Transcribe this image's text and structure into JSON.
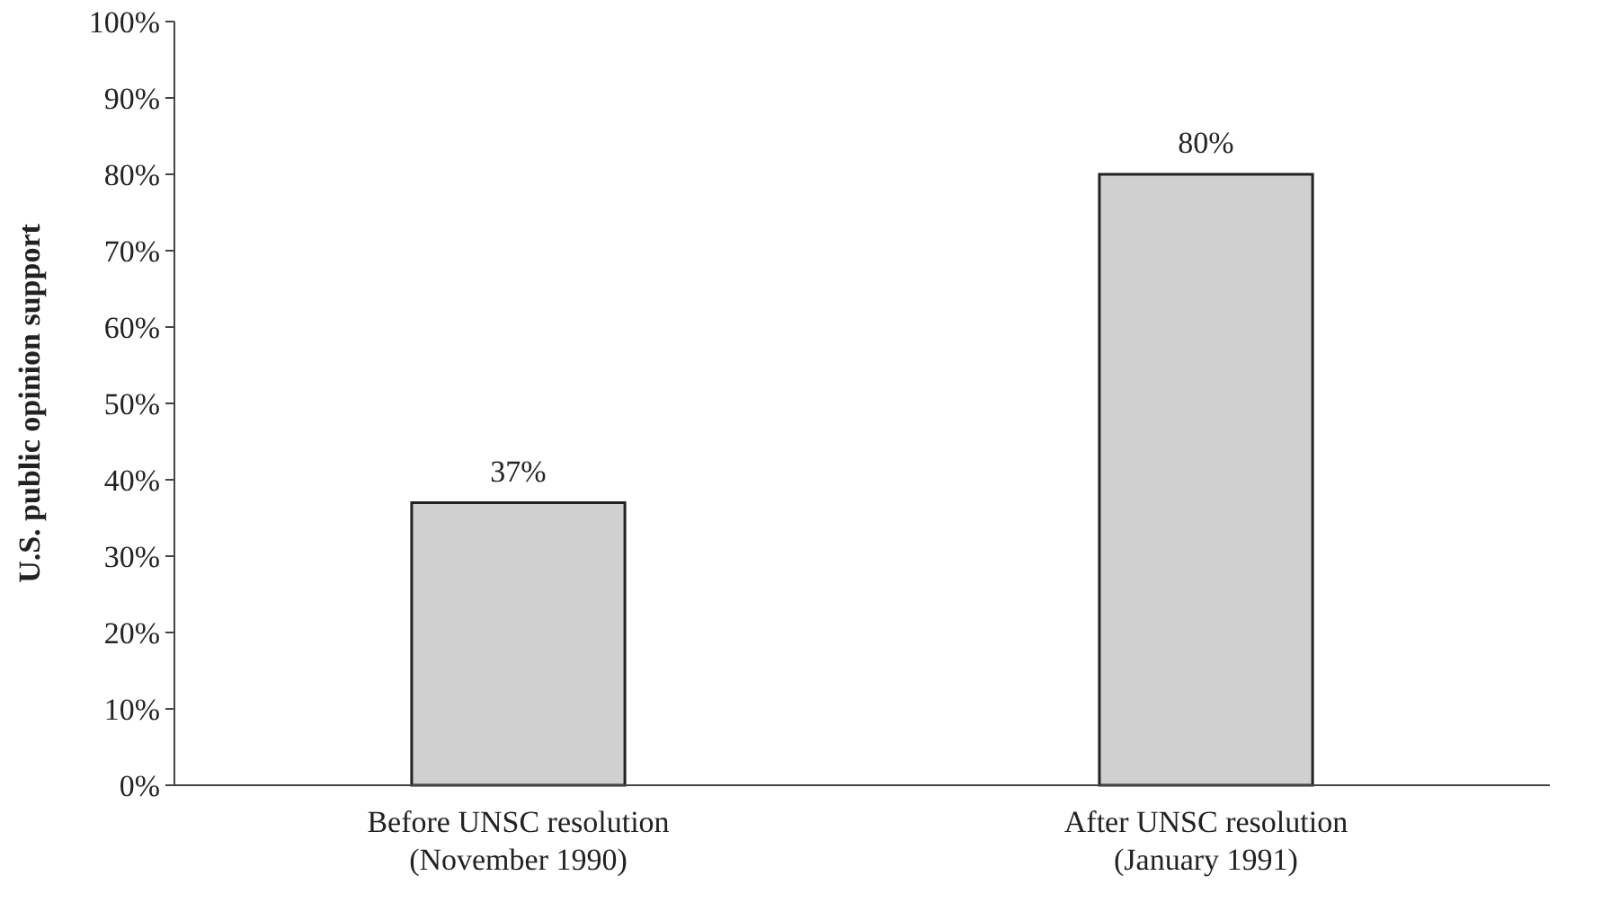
{
  "chart_data": {
    "type": "bar",
    "ylabel": "U.S. public opinion support",
    "categories": [
      "Before UNSC resolution\n(November 1990)",
      "After UNSC resolution\n(January 1991)"
    ],
    "values": [
      37,
      80
    ],
    "color": "#d0d0d0",
    "value_labels": [
      "37%",
      "80%"
    ],
    "ylim": [
      0,
      100
    ],
    "yticks": [
      {
        "value": 0,
        "label": "0%"
      },
      {
        "value": 10,
        "label": "10%"
      },
      {
        "value": 20,
        "label": "20%"
      },
      {
        "value": 30,
        "label": "30%"
      },
      {
        "value": 40,
        "label": "40%"
      },
      {
        "value": 50,
        "label": "50%"
      },
      {
        "value": 60,
        "label": "60%"
      },
      {
        "value": 70,
        "label": "70%"
      },
      {
        "value": 80,
        "label": "80%"
      },
      {
        "value": 90,
        "label": "90%"
      },
      {
        "value": 100,
        "label": "100%"
      }
    ],
    "grid": false
  }
}
